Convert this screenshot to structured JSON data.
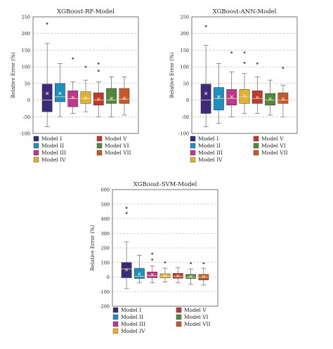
{
  "models": [
    {
      "name": "Model I",
      "color": "#3b2a7a"
    },
    {
      "name": "Model II",
      "color": "#1f8fbf"
    },
    {
      "name": "Model III",
      "color": "#c2368f"
    },
    {
      "name": "Model IV",
      "color": "#e3b22a"
    },
    {
      "name": "Model V",
      "color": "#c0392b"
    },
    {
      "name": "Model VI",
      "color": "#4f8a3c"
    },
    {
      "name": "Model VII",
      "color": "#c9572a"
    }
  ],
  "chart_data": [
    {
      "type": "box",
      "title": "XGBoost-RF-Model",
      "ylabel": "Relative Error (%)",
      "ylim": [
        -100,
        250
      ],
      "yticks": [
        -100,
        -50,
        0,
        50,
        100,
        150,
        200,
        250
      ],
      "grid": "dashed-horizontal",
      "legend": "below-plot",
      "series": [
        {
          "name": "Model I",
          "whisker_low": -80,
          "q1": -35,
          "median": 0,
          "q3": 48,
          "whisker_high": 170,
          "mean": 20,
          "outliers": [
            230
          ]
        },
        {
          "name": "Model II",
          "whisker_low": -50,
          "q1": -5,
          "median": 10,
          "q3": 50,
          "whisker_high": 110,
          "mean": 20,
          "outliers": []
        },
        {
          "name": "Model III",
          "whisker_low": -40,
          "q1": -20,
          "median": 5,
          "q3": 28,
          "whisker_high": 55,
          "mean": 8,
          "outliers": [
            125
          ]
        },
        {
          "name": "Model IV",
          "whisker_low": -35,
          "q1": -10,
          "median": 5,
          "q3": 25,
          "whisker_high": 60,
          "mean": 6,
          "outliers": [
            100
          ]
        },
        {
          "name": "Model V",
          "whisker_low": -50,
          "q1": -15,
          "median": 0,
          "q3": 22,
          "whisker_high": 55,
          "mean": 3,
          "outliers": [
            110,
            88
          ]
        },
        {
          "name": "Model VI",
          "whisker_low": -50,
          "q1": -10,
          "median": 0,
          "q3": 35,
          "whisker_high": 70,
          "mean": 5,
          "outliers": []
        },
        {
          "name": "Model VII",
          "whisker_low": -45,
          "q1": -10,
          "median": 3,
          "q3": 35,
          "whisker_high": 70,
          "mean": 5,
          "outliers": []
        }
      ]
    },
    {
      "type": "box",
      "title": "XGBoost-ANN-Model",
      "ylabel": "Relative Error (%)",
      "ylim": [
        -100,
        250
      ],
      "yticks": [
        -100,
        -50,
        0,
        50,
        100,
        150,
        200,
        250
      ],
      "grid": "dashed-horizontal",
      "legend": "below-plot",
      "series": [
        {
          "name": "Model I",
          "whisker_low": -80,
          "q1": -40,
          "median": 0,
          "q3": 48,
          "whisker_high": 165,
          "mean": 20,
          "outliers": [
            222
          ]
        },
        {
          "name": "Model II",
          "whisker_low": -70,
          "q1": -30,
          "median": 5,
          "q3": 38,
          "whisker_high": 110,
          "mean": 10,
          "outliers": []
        },
        {
          "name": "Model III",
          "whisker_low": -50,
          "q1": -15,
          "median": 5,
          "q3": 32,
          "whisker_high": 85,
          "mean": 10,
          "outliers": [
            143
          ]
        },
        {
          "name": "Model IV",
          "whisker_low": -40,
          "q1": -10,
          "median": 10,
          "q3": 32,
          "whisker_high": 80,
          "mean": 12,
          "outliers": [
            143,
            112
          ]
        },
        {
          "name": "Model V",
          "whisker_low": -40,
          "q1": -10,
          "median": 5,
          "q3": 28,
          "whisker_high": 70,
          "mean": 8,
          "outliers": [
            110
          ]
        },
        {
          "name": "Model VI",
          "whisker_low": -45,
          "q1": -15,
          "median": 0,
          "q3": 20,
          "whisker_high": 60,
          "mean": 3,
          "outliers": []
        },
        {
          "name": "Model VII",
          "whisker_low": -50,
          "q1": -10,
          "median": 0,
          "q3": 22,
          "whisker_high": 45,
          "mean": 3,
          "outliers": [
            97
          ]
        }
      ]
    },
    {
      "type": "box",
      "title": "XGBoost-SVM-Model",
      "ylabel": "Relative Error (%)",
      "ylim": [
        -200,
        600
      ],
      "yticks": [
        -200,
        -100,
        0,
        100,
        200,
        300,
        400,
        500,
        600
      ],
      "grid": "dashed-horizontal",
      "legend": "below-plot",
      "series": [
        {
          "name": "Model I",
          "whisker_low": -80,
          "q1": -5,
          "median": 55,
          "q3": 100,
          "whisker_high": 240,
          "mean": 50,
          "outliers": [
            475,
            440
          ]
        },
        {
          "name": "Model II",
          "whisker_low": -40,
          "q1": -10,
          "median": 5,
          "q3": 60,
          "whisker_high": 150,
          "mean": 20,
          "outliers": []
        },
        {
          "name": "Model III",
          "whisker_low": -40,
          "q1": -5,
          "median": 10,
          "q3": 35,
          "whisker_high": 75,
          "mean": 15,
          "outliers": [
            160,
            120
          ]
        },
        {
          "name": "Model IV",
          "whisker_low": -35,
          "q1": -5,
          "median": 5,
          "q3": 22,
          "whisker_high": 60,
          "mean": 8,
          "outliers": [
            100
          ]
        },
        {
          "name": "Model V",
          "whisker_low": -40,
          "q1": -8,
          "median": 5,
          "q3": 25,
          "whisker_high": 65,
          "mean": 8,
          "outliers": []
        },
        {
          "name": "Model VI",
          "whisker_low": -50,
          "q1": -10,
          "median": 0,
          "q3": 18,
          "whisker_high": 55,
          "mean": 3,
          "outliers": [
            95
          ]
        },
        {
          "name": "Model VII",
          "whisker_low": -55,
          "q1": -20,
          "median": 0,
          "q3": 18,
          "whisker_high": 60,
          "mean": 3,
          "outliers": [
            95
          ]
        }
      ]
    }
  ]
}
